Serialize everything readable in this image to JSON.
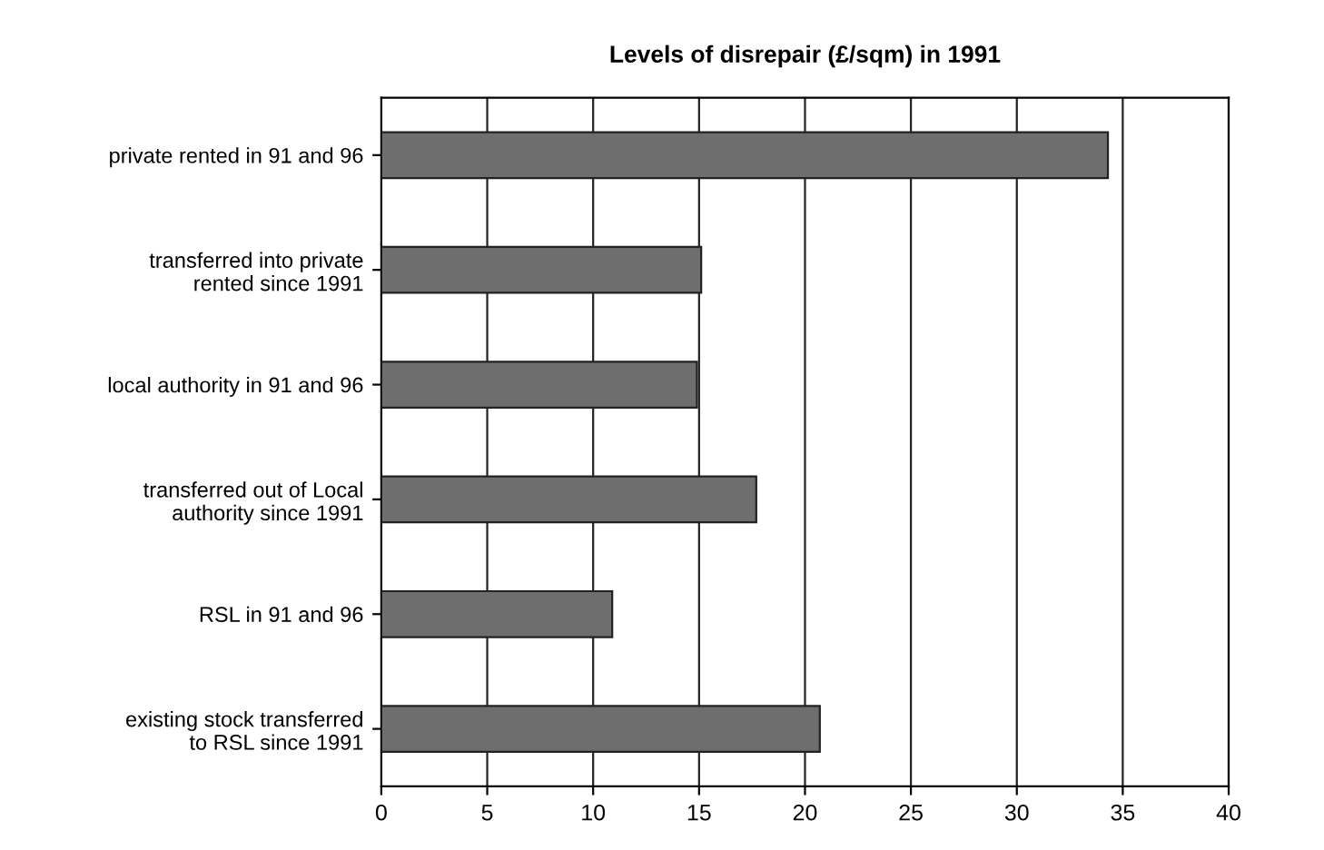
{
  "chart_data": {
    "type": "bar",
    "orientation": "horizontal",
    "title": "Levels of disrepair (£/sqm) in 1991",
    "categories": [
      "private rented in 91 and 96",
      "transferred into private\nrented since 1991",
      "local authority in 91 and 96",
      "transferred out of Local\nauthority since 1991",
      "RSL in 91 and 96",
      "existing stock transferred\nto RSL since 1991"
    ],
    "values": [
      34.3,
      15.1,
      14.9,
      17.7,
      10.9,
      20.7
    ],
    "color": "#6e6e6e",
    "xlim": [
      0,
      40
    ],
    "xticks": [
      0,
      5,
      10,
      15,
      20,
      25,
      30,
      35,
      40
    ],
    "grid": "x"
  }
}
